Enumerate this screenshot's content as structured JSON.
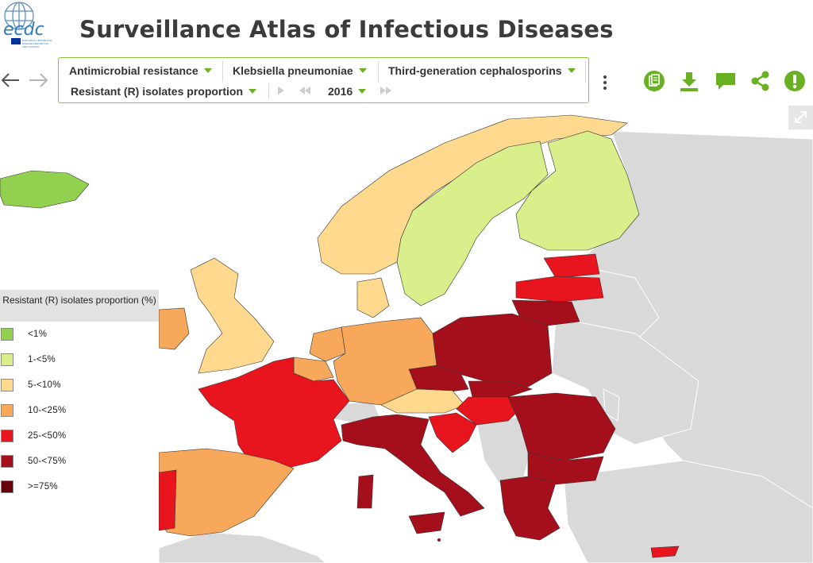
{
  "header": {
    "title": "Surveillance Atlas of Infectious Diseases",
    "logo_text": "ecdc",
    "logo_subtext": "EUROPEAN CENTRE FOR DISEASE PREVENTION AND CONTROL"
  },
  "filters": {
    "health_topic": "Antimicrobial resistance",
    "population": "Klebsiella pneumoniae",
    "subpopulation": "Third-generation cephalosporins",
    "indicator": "Resistant (R) isolates proportion",
    "year": "2016"
  },
  "legend": {
    "title": "Resistant (R) isolates proportion (%)",
    "items": [
      {
        "label": "<1%",
        "color": "#92d050"
      },
      {
        "label": "1-<5%",
        "color": "#d9ef8b"
      },
      {
        "label": "5-<10%",
        "color": "#fed98e"
      },
      {
        "label": "10-<25%",
        "color": "#f7a85a"
      },
      {
        "label": "25-<50%",
        "color": "#e8141e"
      },
      {
        "label": "50-<75%",
        "color": "#a50f1c"
      },
      {
        "label": ">=75%",
        "color": "#67000d"
      }
    ]
  },
  "colors": {
    "accent": "#6ab023",
    "no_data": "#d9d9d9",
    "sea": "#ffffff"
  },
  "icons": [
    "back-arrow-icon",
    "forward-arrow-icon",
    "more-options-icon",
    "report-icon",
    "download-icon",
    "comment-icon",
    "share-icon",
    "info-icon",
    "fullscreen-icon"
  ]
}
